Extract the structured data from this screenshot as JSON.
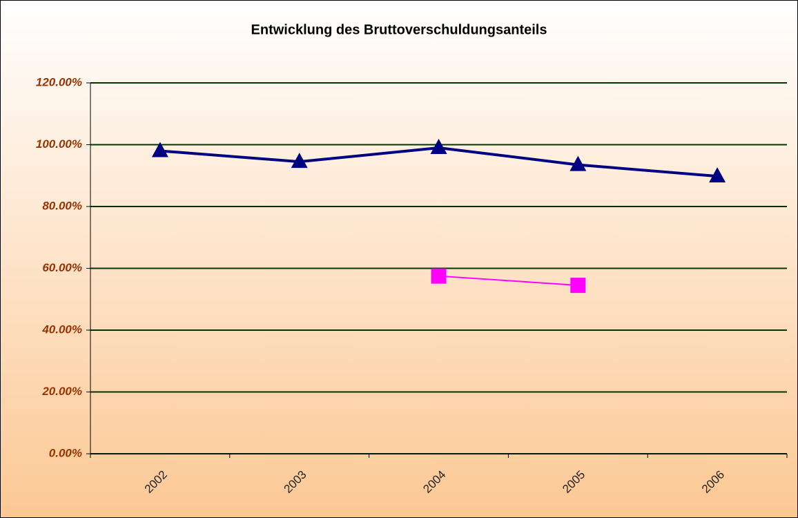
{
  "chart_data": {
    "type": "line",
    "title": "Entwicklung des Bruttoverschuldungsanteils",
    "categories": [
      "2002",
      "2003",
      "2004",
      "2005",
      "2006"
    ],
    "series": [
      {
        "color": "#000080",
        "marker": "triangle",
        "values": [
          98,
          94.5,
          99,
          93.5,
          89.8
        ]
      },
      {
        "color": "#ff00ff",
        "marker": "square",
        "values": [
          null,
          null,
          57.5,
          54.5,
          null
        ]
      }
    ],
    "ylim": [
      0,
      120
    ],
    "yticks": [
      {
        "value": 0,
        "label": "0.00%"
      },
      {
        "value": 20,
        "label": "20.00%"
      },
      {
        "value": 40,
        "label": "40.00%"
      },
      {
        "value": 60,
        "label": "60.00%"
      },
      {
        "value": 80,
        "label": "80.00%"
      },
      {
        "value": 100,
        "label": "100.00%"
      },
      {
        "value": 120,
        "label": "120.00%"
      }
    ],
    "grid": true
  }
}
